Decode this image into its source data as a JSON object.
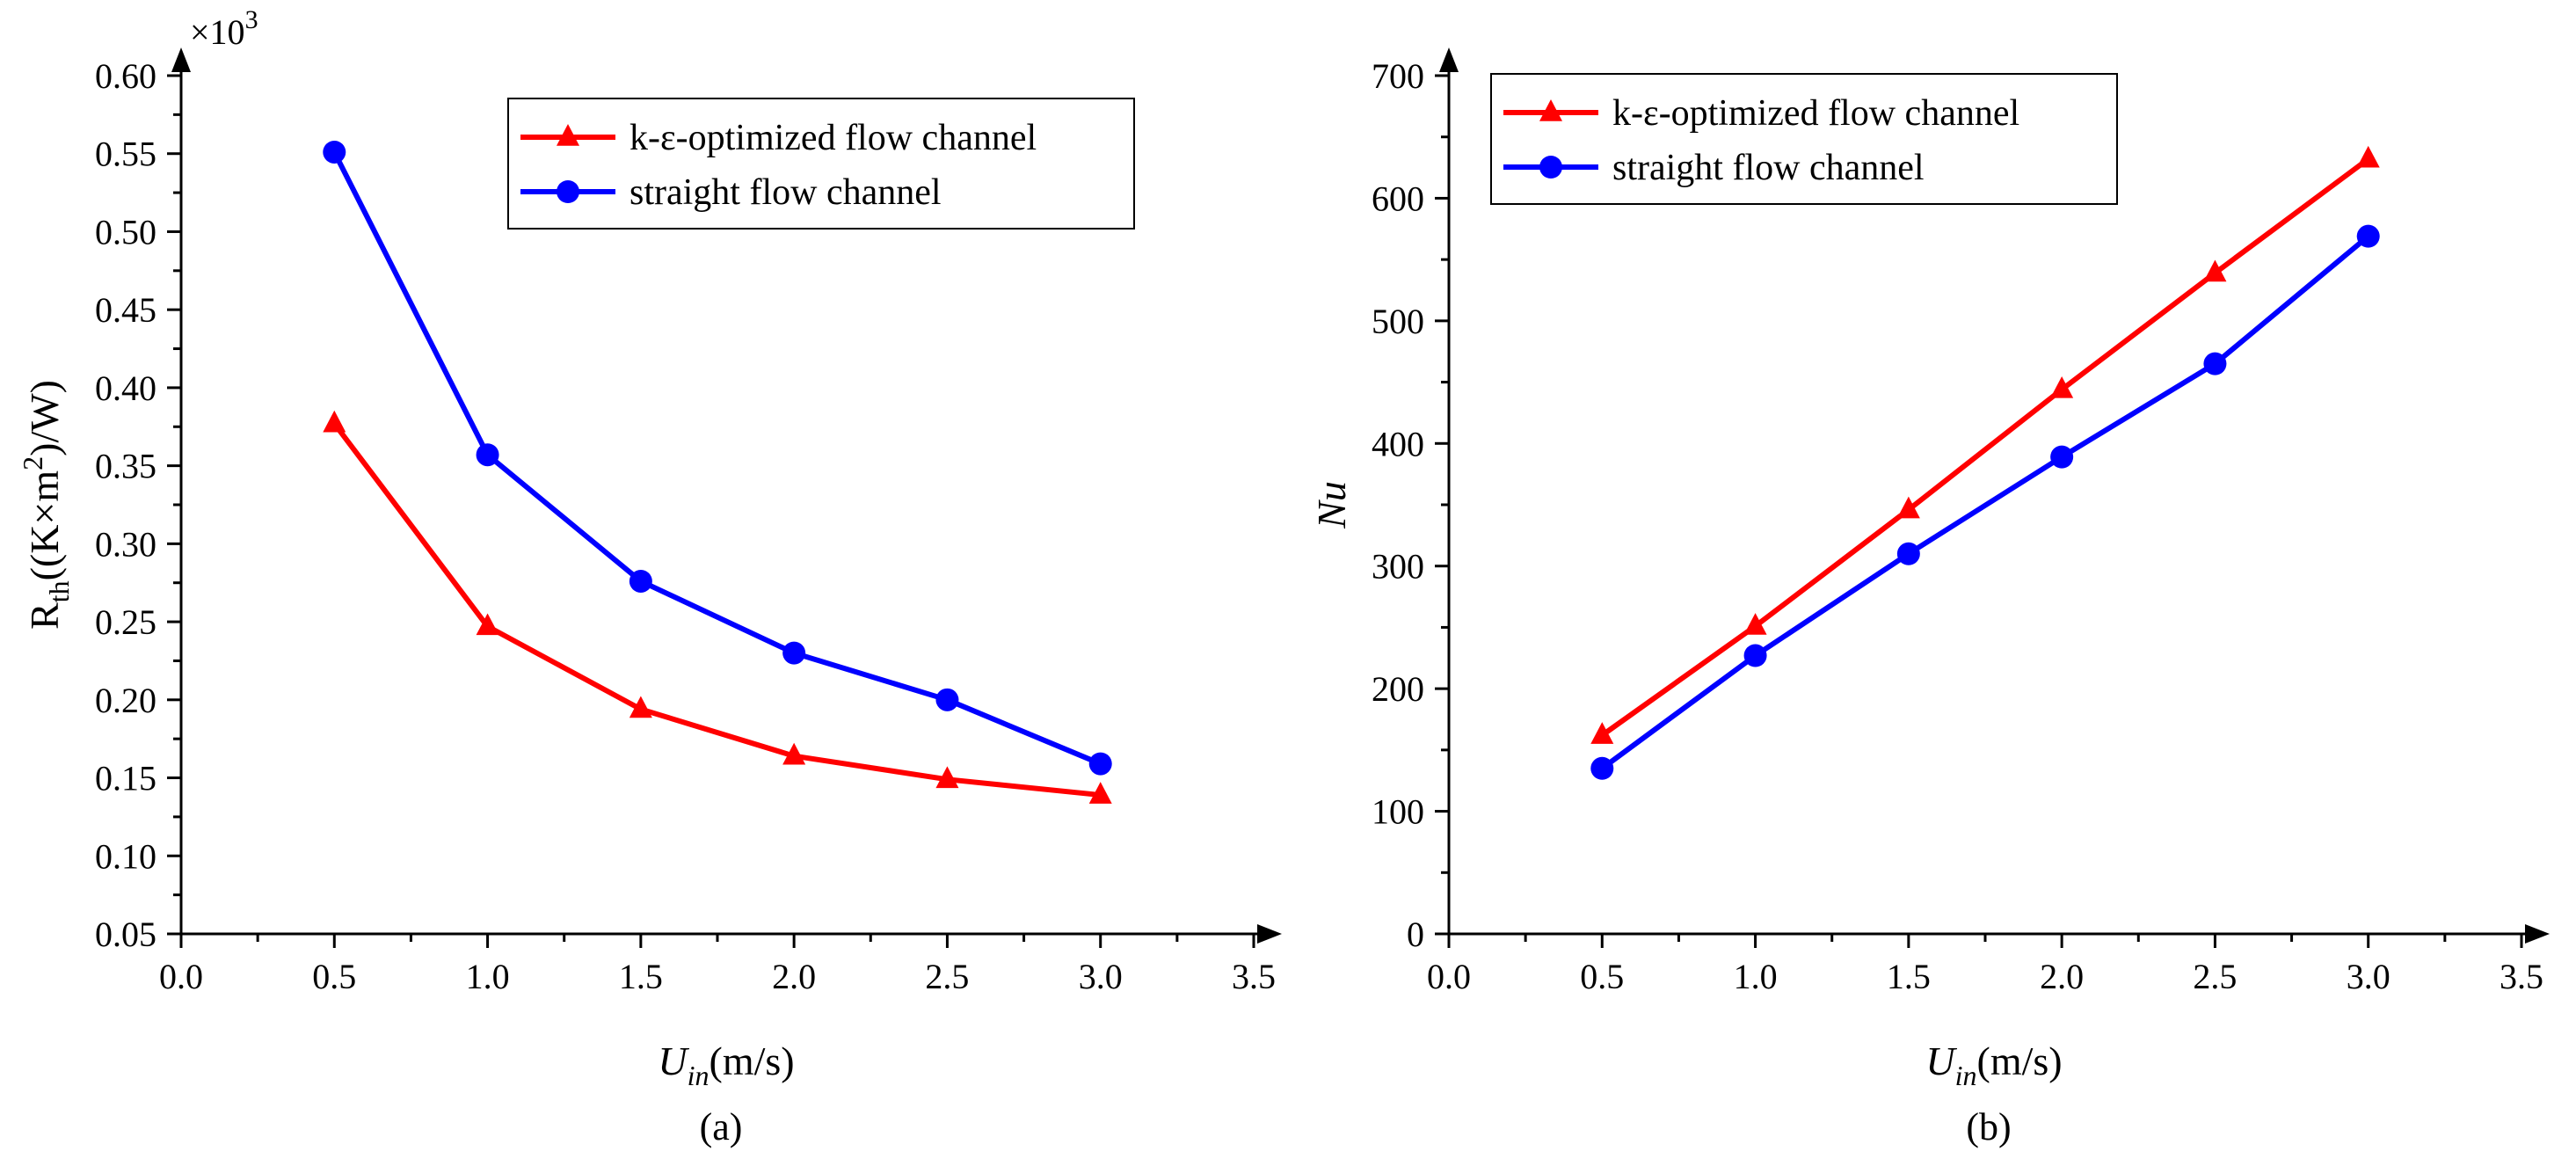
{
  "chart_data": [
    {
      "type": "line",
      "caption": "(a)",
      "multiplier": "×10",
      "multiplier_exp": "3",
      "xlabel": {
        "italic": "U",
        "sub": "in",
        "rest": "(m/s)"
      },
      "ylabel": {
        "pre": "R",
        "sub": "th",
        "mid": "((K×m",
        "sup": "2",
        "post": ")/W)"
      },
      "xlim": [
        0.0,
        3.5
      ],
      "ylim": [
        0.05,
        0.6
      ],
      "xticks": [
        "0.0",
        "0.5",
        "1.0",
        "1.5",
        "2.0",
        "2.5",
        "3.0",
        "3.5"
      ],
      "yticks": [
        "0.05",
        "0.10",
        "0.15",
        "0.20",
        "0.25",
        "0.30",
        "0.35",
        "0.40",
        "0.45",
        "0.50",
        "0.55",
        "0.60"
      ],
      "x": [
        0.5,
        1.0,
        1.5,
        2.0,
        2.5,
        3.0
      ],
      "series": [
        {
          "name": "k-ε-optimized flow channel",
          "color": "#ff0000",
          "marker": "triangle",
          "values": [
            0.377,
            0.247,
            0.194,
            0.164,
            0.149,
            0.139
          ]
        },
        {
          "name": "straight flow channel",
          "color": "#0000ff",
          "marker": "circle",
          "values": [
            0.551,
            0.357,
            0.276,
            0.23,
            0.2,
            0.159
          ]
        }
      ],
      "legend": "top-right"
    },
    {
      "type": "line",
      "caption": "(b)",
      "xlabel": {
        "italic": "U",
        "sub": "in",
        "rest": "(m/s)"
      },
      "ylabel": {
        "italic": "Nu"
      },
      "xlim": [
        0.0,
        3.5
      ],
      "ylim": [
        0,
        700
      ],
      "xticks": [
        "0.0",
        "0.5",
        "1.0",
        "1.5",
        "2.0",
        "2.5",
        "3.0",
        "3.5"
      ],
      "yticks": [
        "0",
        "100",
        "200",
        "300",
        "400",
        "500",
        "600",
        "700"
      ],
      "x": [
        0.5,
        1.0,
        1.5,
        2.0,
        2.5,
        3.0
      ],
      "series": [
        {
          "name": "k-ε-optimized flow channel",
          "color": "#ff0000",
          "marker": "triangle",
          "values": [
            162,
            251,
            346,
            444,
            539,
            632
          ]
        },
        {
          "name": "straight flow channel",
          "color": "#0000ff",
          "marker": "circle",
          "values": [
            135,
            227,
            310,
            389,
            465,
            569
          ]
        }
      ],
      "legend": "top-left"
    }
  ]
}
